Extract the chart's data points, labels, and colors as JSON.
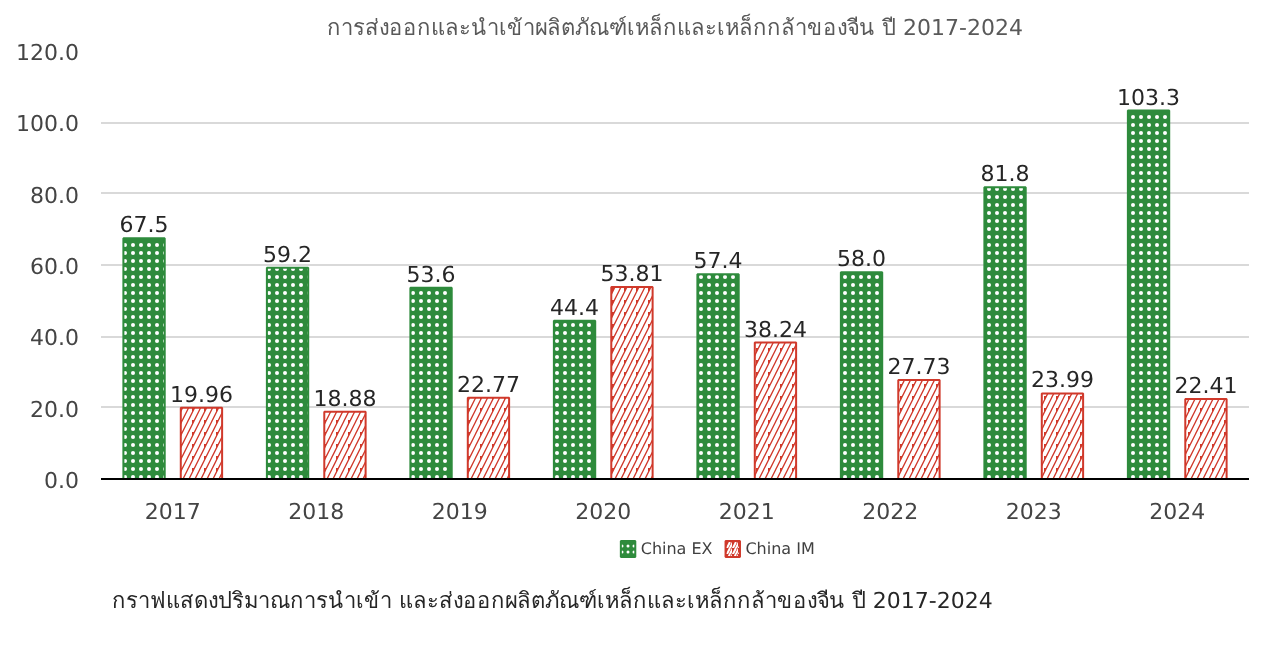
{
  "chart_data": {
    "type": "bar",
    "title": "การส่งออกและนำเข้าผลิตภัณฑ์เหล็กและเหล็กกล้าของจีน ปี 2017-2024",
    "categories": [
      "2017",
      "2018",
      "2019",
      "2020",
      "2021",
      "2022",
      "2023",
      "2024"
    ],
    "series": [
      {
        "name": "China EX",
        "color": "#2e8b3c",
        "values": [
          67.5,
          59.2,
          53.6,
          44.4,
          57.4,
          58.0,
          81.8,
          103.3
        ],
        "value_labels": [
          "67.5",
          "59.2",
          "53.6",
          "44.4",
          "57.4",
          "58.0",
          "81.8",
          "103.3"
        ]
      },
      {
        "name": "China IM",
        "color": "#d0392b",
        "values": [
          19.96,
          18.88,
          22.77,
          53.81,
          38.24,
          27.73,
          23.99,
          22.41
        ],
        "value_labels": [
          "19.96",
          "18.88",
          "22.77",
          "53.81",
          "38.24",
          "27.73",
          "23.99",
          "22.41"
        ]
      }
    ],
    "ylim": [
      0,
      120
    ],
    "yticks": [
      {
        "value": 0,
        "label": "0.0"
      },
      {
        "value": 20,
        "label": "20.0"
      },
      {
        "value": 40,
        "label": "40.0"
      },
      {
        "value": 60,
        "label": "60.0"
      },
      {
        "value": 80,
        "label": "80.0"
      },
      {
        "value": 100,
        "label": "100.0"
      },
      {
        "value": 120,
        "label": "120.0"
      }
    ],
    "grid": "y",
    "legend": "bottom",
    "annotations": [
      "กราฟแสดงปริมาณการนำเข้า และส่งออกผลิตภัณฑ์เหล็กและเหล็กกล้าของจีน ปี 2017-2024"
    ]
  }
}
